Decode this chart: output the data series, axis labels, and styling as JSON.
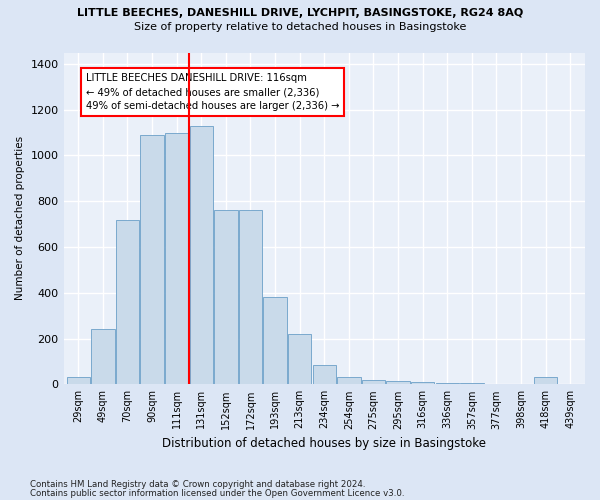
{
  "title": "LITTLE BEECHES, DANESHILL DRIVE, LYCHPIT, BASINGSTOKE, RG24 8AQ",
  "subtitle": "Size of property relative to detached houses in Basingstoke",
  "xlabel": "Distribution of detached houses by size in Basingstoke",
  "ylabel": "Number of detached properties",
  "footnote1": "Contains HM Land Registry data © Crown copyright and database right 2024.",
  "footnote2": "Contains public sector information licensed under the Open Government Licence v3.0.",
  "bar_labels": [
    "29sqm",
    "49sqm",
    "70sqm",
    "90sqm",
    "111sqm",
    "131sqm",
    "152sqm",
    "172sqm",
    "193sqm",
    "213sqm",
    "234sqm",
    "254sqm",
    "275sqm",
    "295sqm",
    "316sqm",
    "336sqm",
    "357sqm",
    "377sqm",
    "398sqm",
    "418sqm",
    "439sqm"
  ],
  "bar_values": [
    30,
    240,
    720,
    1090,
    1100,
    1130,
    760,
    760,
    380,
    220,
    85,
    30,
    20,
    15,
    10,
    5,
    5,
    0,
    0,
    30,
    0
  ],
  "bar_color": "#c9daea",
  "bar_edge_color": "#6b9fc8",
  "vline_color": "red",
  "annotation_text": "LITTLE BEECHES DANESHILL DRIVE: 116sqm\n← 49% of detached houses are smaller (2,336)\n49% of semi-detached houses are larger (2,336) →",
  "ylim": [
    0,
    1450
  ],
  "yticks": [
    0,
    200,
    400,
    600,
    800,
    1000,
    1200,
    1400
  ],
  "bg_color": "#dce6f5",
  "plot_bg_color": "#eaf0f9",
  "grid_color": "white",
  "annotation_box_edge": "red"
}
